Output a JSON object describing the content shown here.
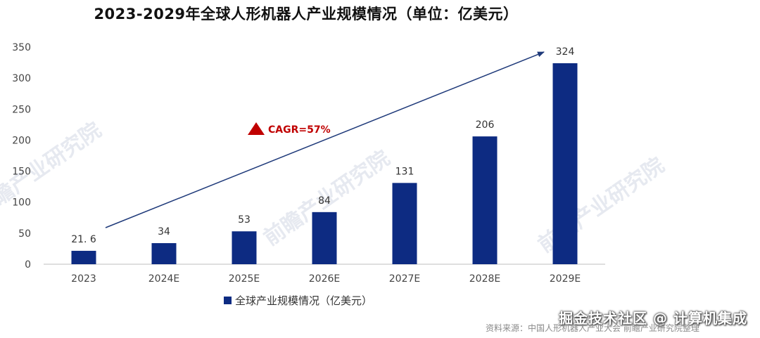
{
  "chart_data": {
    "type": "bar",
    "title": "2023-2029年全球人形机器人产业规模情况（单位：亿美元）",
    "categories": [
      "2023",
      "2024E",
      "2025E",
      "2026E",
      "2027E",
      "2028E",
      "2029E"
    ],
    "series": [
      {
        "name": "全球产业规模情况（亿美元）",
        "values": [
          21.6,
          34,
          53,
          84,
          131,
          206,
          324
        ],
        "value_labels": [
          "21. 6",
          "34",
          "53",
          "84",
          "131",
          "206",
          "324"
        ],
        "color": "#0d2b82"
      }
    ],
    "ylim": [
      0,
      350
    ],
    "yticks": [
      0,
      50,
      100,
      150,
      200,
      250,
      300,
      350
    ],
    "grid": false,
    "legend": "bottom",
    "annotation": {
      "text": "CAGR=57%",
      "color": "#c00000"
    }
  },
  "watermark": {
    "brand": "前瞻产业研究院",
    "credit": "掘金技术社区 @ 计算机集成"
  },
  "source": "资料来源：中国人形机器人产业大会 前瞻产业研究院整理",
  "colors": {
    "bar": "#0d2b82",
    "arrow": "#1f3a7a",
    "accent": "#c00000"
  }
}
